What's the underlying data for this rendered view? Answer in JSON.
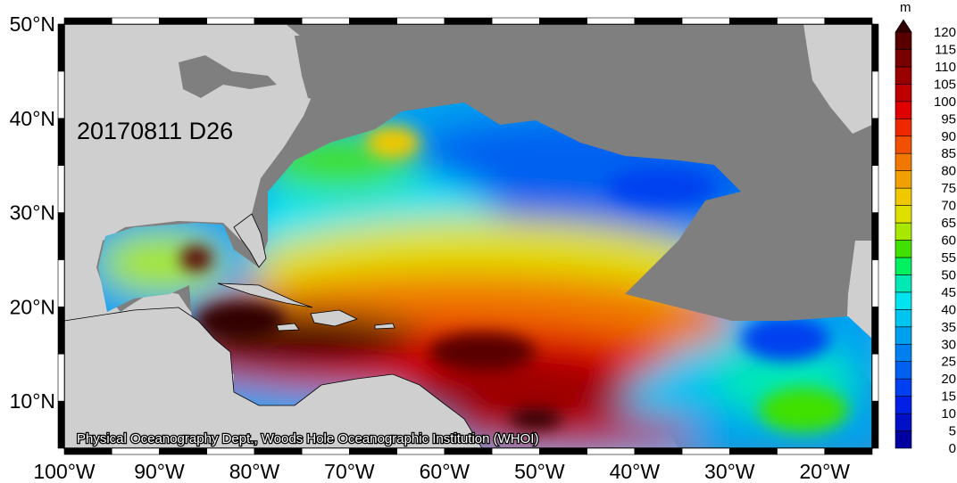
{
  "map": {
    "date_label": "20170811 D26",
    "credit": "Physical Oceanography Dept., Woods Hole Oceanographic Institution (WHOI)",
    "lon_range": [
      -100,
      -15
    ],
    "lat_range": [
      5,
      50
    ],
    "lon_ticks": [
      "100°W",
      "90°W",
      "80°W",
      "70°W",
      "60°W",
      "50°W",
      "40°W",
      "30°W",
      "20°W"
    ],
    "lat_ticks": [
      "50°N",
      "40°N",
      "30°N",
      "20°N",
      "10°N"
    ],
    "colors": {
      "ocean_nodata": "#7f7f7f",
      "land": "#cfcfcf",
      "frame_black": "#000000",
      "frame_white": "#ffffff"
    }
  },
  "colorbar": {
    "unit": "m",
    "levels": [
      "0",
      "5",
      "10",
      "15",
      "20",
      "25",
      "30",
      "35",
      "40",
      "45",
      "50",
      "55",
      "60",
      "65",
      "70",
      "75",
      "80",
      "85",
      "90",
      "95",
      "100",
      "105",
      "110",
      "115",
      "120"
    ],
    "colors": [
      "#0000a0",
      "#0010c8",
      "#0020e6",
      "#0040f0",
      "#0060f0",
      "#0080f0",
      "#00a0f0",
      "#00c4f0",
      "#00e4f0",
      "#00e8b4",
      "#00f060",
      "#40e000",
      "#a8e800",
      "#e0e000",
      "#f0c800",
      "#f0a000",
      "#f07800",
      "#f05000",
      "#f02800",
      "#e00000",
      "#c00000",
      "#9a0000",
      "#780000",
      "#580000",
      "#300000"
    ]
  }
}
